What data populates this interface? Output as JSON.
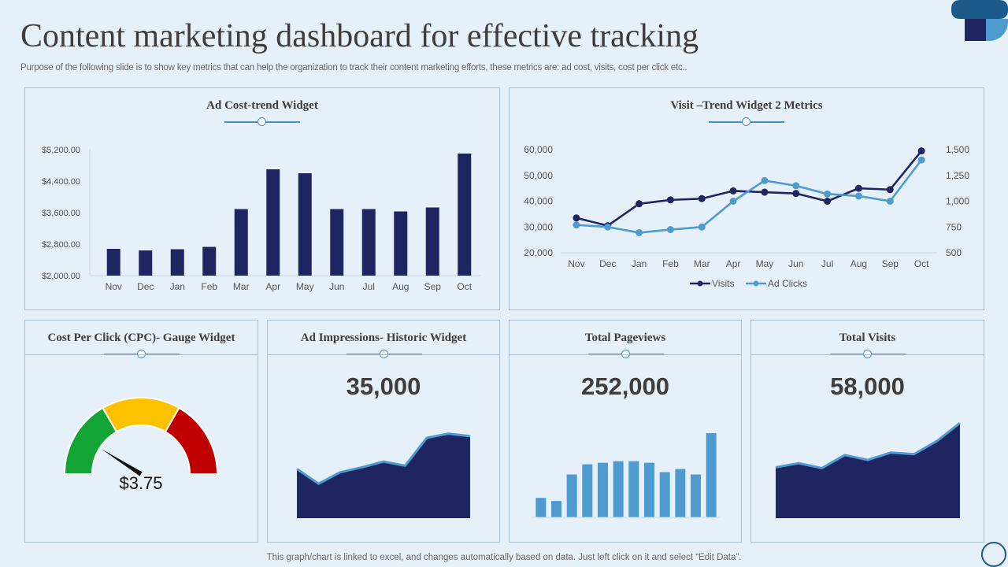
{
  "page": {
    "title": "Content marketing dashboard for effective tracking",
    "subtitle": "Purpose of the following slide is to show key metrics that can help the organization to track their content marketing efforts, these metrics are: ad cost, visits, cost per click etc..",
    "footer": "This graph/chart is linked to excel,  and changes automatically based on data. Just left click on it and select “Edit Data”."
  },
  "colors": {
    "navy": "#1f2560",
    "blue": "#4f9bd0",
    "panel_border": "#a9bfd3",
    "accent": "#4a90c9"
  },
  "widgets": {
    "ad_cost": {
      "title": "Ad Cost-trend Widget"
    },
    "visit_trend": {
      "title": "Visit –Trend Widget 2 Metrics"
    },
    "cpc": {
      "title": "Cost Per Click (CPC)-  Gauge Widget"
    },
    "impressions": {
      "title": "Ad Impressions- Historic Widget",
      "value": "35,000"
    },
    "pageviews": {
      "title": "Total Pageviews",
      "value": "252,000"
    },
    "visits": {
      "title": "Total Visits",
      "value": "58,000"
    }
  },
  "chart_data": [
    {
      "id": "ad_cost",
      "type": "bar",
      "title": "Ad Cost-trend Widget",
      "categories": [
        "Nov",
        "Dec",
        "Jan",
        "Feb",
        "Mar",
        "Apr",
        "May",
        "Jun",
        "Jul",
        "Aug",
        "Sep",
        "Oct"
      ],
      "values": [
        2680,
        2640,
        2670,
        2730,
        3690,
        4700,
        4600,
        3690,
        3690,
        3630,
        3730,
        5100
      ],
      "ylim": [
        2000,
        5200
      ],
      "yticks": [
        2000,
        2800,
        3600,
        4400,
        5200
      ],
      "ytick_labels": [
        "$2,000.00",
        "$2,800.00",
        "$3,600.00",
        "$4,400.00",
        "$5,200.00"
      ]
    },
    {
      "id": "visit_trend",
      "type": "line",
      "title": "Visit –Trend Widget 2 Metrics",
      "categories": [
        "Nov",
        "Dec",
        "Jan",
        "Feb",
        "Mar",
        "Apr",
        "May",
        "Jun",
        "Jul",
        "Aug",
        "Sep",
        "Oct"
      ],
      "series": [
        {
          "name": "Visits",
          "axis": "left",
          "values": [
            33500,
            30500,
            39000,
            40500,
            41000,
            44000,
            43500,
            43000,
            40000,
            45000,
            44500,
            59500
          ]
        },
        {
          "name": "Ad Clicks",
          "axis": "right",
          "values": [
            770,
            750,
            695,
            725,
            750,
            1000,
            1200,
            1150,
            1070,
            1050,
            1000,
            1400
          ]
        }
      ],
      "ylim_left": [
        20000,
        60000
      ],
      "yticks_left": [
        "20,000",
        "30,000",
        "40,000",
        "50,000",
        "60,000"
      ],
      "ylim_right": [
        500,
        1500
      ],
      "yticks_right": [
        "500",
        "750",
        "1,000",
        "1,250",
        "1,500"
      ],
      "legend": "bottom"
    },
    {
      "id": "cpc_gauge",
      "type": "gauge",
      "title": "Cost Per Click (CPC)-  Gauge Widget",
      "value_label": "$3.75",
      "needle_fraction": 0.18,
      "bands": [
        {
          "name": "low",
          "color": "#12a535"
        },
        {
          "name": "mid",
          "color": "#fdc100"
        },
        {
          "name": "high",
          "color": "#c00000"
        }
      ]
    },
    {
      "id": "impressions_area",
      "type": "area",
      "title": "Ad Impressions- Historic Widget",
      "values": [
        30,
        12,
        26,
        32,
        39,
        34,
        68,
        73,
        70
      ],
      "ylim": [
        -30,
        90
      ]
    },
    {
      "id": "pageviews_bars",
      "type": "bar",
      "title": "Total Pageviews",
      "values": [
        25,
        21,
        55,
        68,
        70,
        72,
        72,
        70,
        58,
        62,
        55,
        108
      ],
      "ylim": [
        0,
        110
      ]
    },
    {
      "id": "visits_area",
      "type": "area",
      "title": "Total Visits",
      "values": [
        22,
        27,
        21,
        37,
        31,
        40,
        38,
        54,
        76
      ],
      "ylim": [
        -40,
        80
      ]
    }
  ]
}
